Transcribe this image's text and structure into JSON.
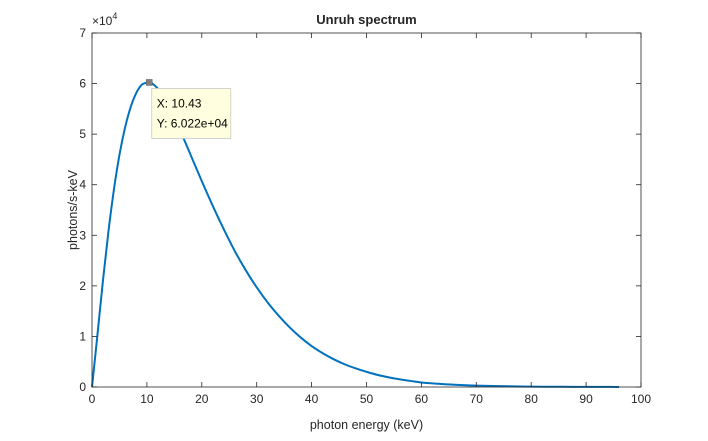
{
  "chart_data": {
    "type": "line",
    "title": "Unruh spectrum",
    "xlabel": "photon energy (keV)",
    "ylabel": "photons/s-keV",
    "xlim": [
      0,
      100
    ],
    "ylim": [
      0,
      70000
    ],
    "x_ticks": [
      0,
      10,
      20,
      30,
      40,
      50,
      60,
      70,
      80,
      90,
      100
    ],
    "y_ticks": [
      0,
      1,
      2,
      3,
      4,
      5,
      6,
      7
    ],
    "y_tick_labels": [
      "0",
      "1",
      "2",
      "3",
      "4",
      "5",
      "6",
      "7"
    ],
    "y_exponent_base": "×10",
    "y_exponent_power": "4",
    "grid": false,
    "line_color": "#0072bd",
    "series": [
      {
        "x": [
          0,
          1,
          2,
          3,
          4,
          5,
          6,
          7,
          8,
          9,
          10,
          10.43,
          11,
          12,
          13,
          14,
          15,
          16,
          18,
          20,
          22,
          24,
          26,
          28,
          30,
          32,
          34,
          36,
          38,
          40,
          42,
          44,
          46,
          48,
          50,
          52,
          55,
          58,
          60,
          63,
          66,
          70,
          74,
          78,
          82,
          86,
          90,
          93,
          96
        ],
        "values": [
          0,
          10400,
          21100,
          30800,
          39100,
          45900,
          51200,
          55200,
          58000,
          59700,
          60200,
          60220,
          60000,
          59000,
          57500,
          55600,
          53300,
          50900,
          45800,
          40700,
          35800,
          31200,
          26900,
          23100,
          19700,
          16700,
          14100,
          11800,
          9800,
          8100,
          6700,
          5500,
          4500,
          3700,
          3000,
          2400,
          1700,
          1200,
          900,
          650,
          450,
          280,
          170,
          100,
          60,
          40,
          25,
          15,
          10
        ]
      }
    ],
    "datatip": {
      "x": 10.43,
      "y": 60220,
      "x_text": "X: 10.43",
      "y_text": "Y: 6.022e+04"
    }
  }
}
